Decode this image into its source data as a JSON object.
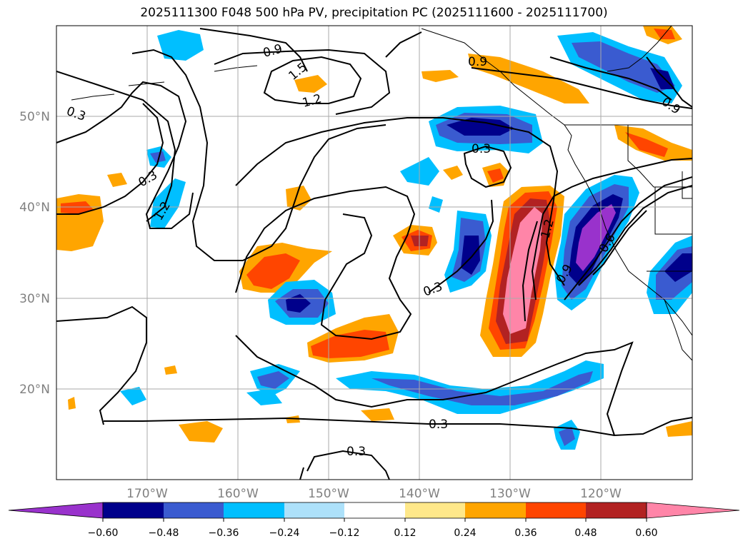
{
  "title": "2025111300 F048 500 hPa PV, precipitation PC (2025111600 - 2025111700)",
  "lat_labels": [
    "50°N",
    "40°N",
    "30°N",
    "20°N"
  ],
  "lon_labels": [
    "170°W",
    "160°W",
    "150°W",
    "140°W",
    "130°W",
    "120°W"
  ],
  "contour_labels": [
    "0.3",
    "0.3",
    "0.3",
    "0.3",
    "0.3",
    "0.3",
    "0.9",
    "0.9",
    "0.9",
    "0.9",
    "1.2",
    "1.2",
    "1.2",
    "1.5",
    "0.6"
  ],
  "colorbar": {
    "tick_labels": [
      "−0.60",
      "−0.48",
      "−0.36",
      "−0.24",
      "−0.12",
      "0.12",
      "0.24",
      "0.36",
      "0.48",
      "0.60"
    ],
    "colors": [
      "#9932CC",
      "#00008B",
      "#3A5BD0",
      "#00BFFF",
      "#ADE1FA",
      "#FFFFFF",
      "#FFE88A",
      "#FFA500",
      "#FF4500",
      "#B22222",
      "#FF85A8"
    ]
  },
  "colors": {
    "contour": "#000000",
    "grid": "#aaaaaa",
    "axis_label": "#808080"
  }
}
